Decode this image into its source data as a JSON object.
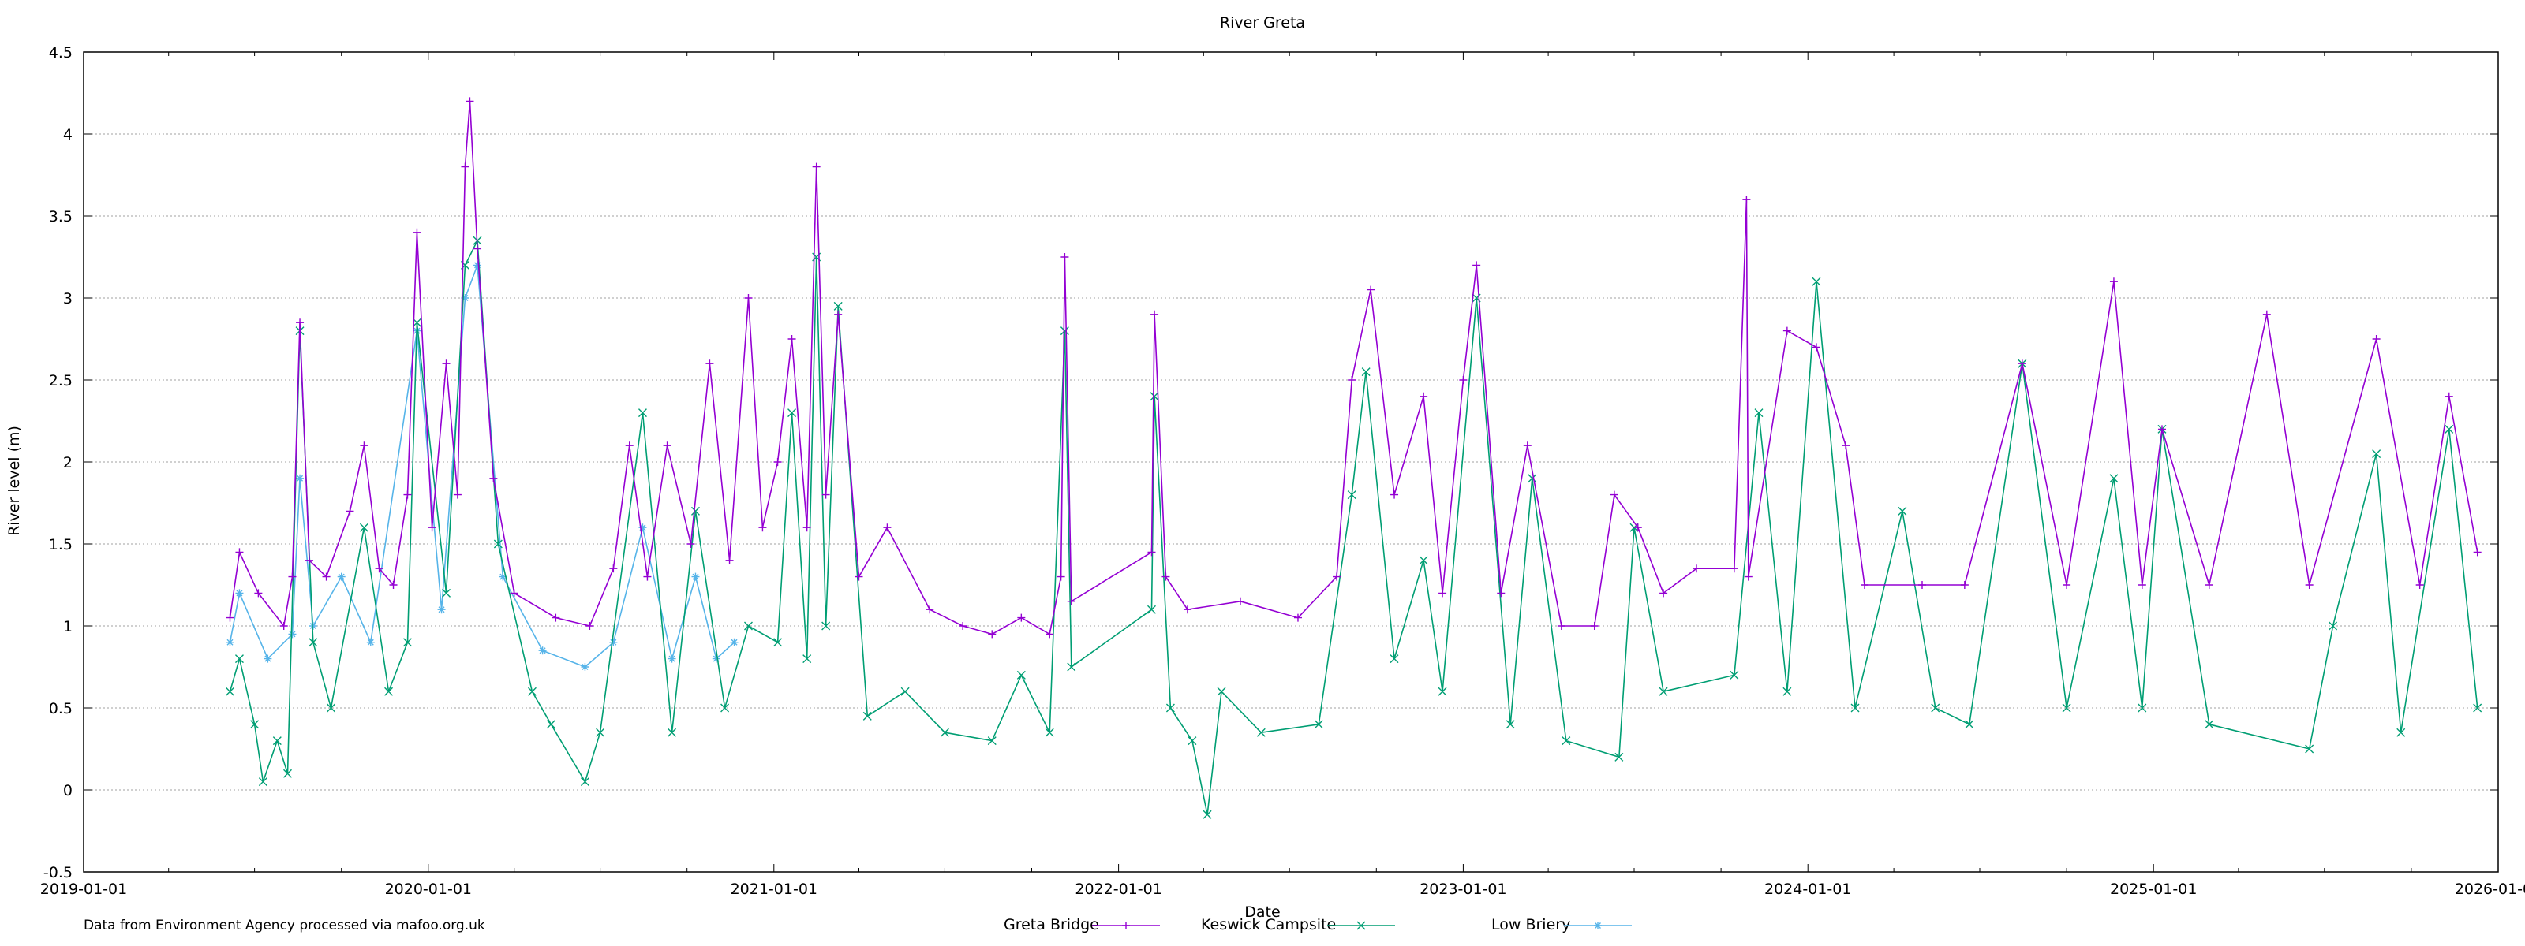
{
  "chart_data": {
    "type": "line",
    "title": "River Greta",
    "xlabel": "Date",
    "ylabel": "River level (m)",
    "footnote": "Data from Environment Agency processed via mafoo.org.uk",
    "x_axis": {
      "type": "date",
      "min": "2019-01-01",
      "max": "2026-01-01",
      "ticks": [
        "2019-01-01",
        "2020-01-01",
        "2021-01-01",
        "2022-01-01",
        "2023-01-01",
        "2024-01-01",
        "2025-01-01",
        "2026-01-01"
      ]
    },
    "y_axis": {
      "min": -0.5,
      "max": 4.5,
      "ticks": [
        -0.5,
        0,
        0.5,
        1,
        1.5,
        2,
        2.5,
        3,
        3.5,
        4,
        4.5
      ]
    },
    "grid": true,
    "legend_placement": "bottom-center",
    "series": [
      {
        "name": "Greta Bridge",
        "color": "#9400d3",
        "marker": "plus",
        "points": [
          [
            "2019-06-05",
            1.05
          ],
          [
            "2019-06-15",
            1.45
          ],
          [
            "2019-07-05",
            1.2
          ],
          [
            "2019-08-01",
            1.0
          ],
          [
            "2019-08-10",
            1.3
          ],
          [
            "2019-08-18",
            2.85
          ],
          [
            "2019-08-28",
            1.4
          ],
          [
            "2019-09-15",
            1.3
          ],
          [
            "2019-10-10",
            1.7
          ],
          [
            "2019-10-25",
            2.1
          ],
          [
            "2019-11-10",
            1.35
          ],
          [
            "2019-11-25",
            1.25
          ],
          [
            "2019-12-10",
            1.8
          ],
          [
            "2019-12-20",
            3.4
          ],
          [
            "2020-01-05",
            1.6
          ],
          [
            "2020-01-20",
            2.6
          ],
          [
            "2020-02-01",
            1.8
          ],
          [
            "2020-02-09",
            3.8
          ],
          [
            "2020-02-14",
            4.2
          ],
          [
            "2020-02-22",
            3.3
          ],
          [
            "2020-03-10",
            1.9
          ],
          [
            "2020-04-01",
            1.2
          ],
          [
            "2020-05-15",
            1.05
          ],
          [
            "2020-06-20",
            1.0
          ],
          [
            "2020-07-15",
            1.35
          ],
          [
            "2020-08-01",
            2.1
          ],
          [
            "2020-08-20",
            1.3
          ],
          [
            "2020-09-10",
            2.1
          ],
          [
            "2020-10-05",
            1.5
          ],
          [
            "2020-10-25",
            2.6
          ],
          [
            "2020-11-15",
            1.4
          ],
          [
            "2020-12-05",
            3.0
          ],
          [
            "2020-12-20",
            1.6
          ],
          [
            "2021-01-05",
            2.0
          ],
          [
            "2021-01-20",
            2.75
          ],
          [
            "2021-02-05",
            1.6
          ],
          [
            "2021-02-15",
            3.8
          ],
          [
            "2021-02-25",
            1.8
          ],
          [
            "2021-03-10",
            2.9
          ],
          [
            "2021-04-01",
            1.3
          ],
          [
            "2021-05-01",
            1.6
          ],
          [
            "2021-06-15",
            1.1
          ],
          [
            "2021-07-20",
            1.0
          ],
          [
            "2021-08-20",
            0.95
          ],
          [
            "2021-09-20",
            1.05
          ],
          [
            "2021-10-20",
            0.95
          ],
          [
            "2021-11-01",
            1.3
          ],
          [
            "2021-11-05",
            3.25
          ],
          [
            "2021-11-12",
            1.15
          ],
          [
            "2022-02-05",
            1.45
          ],
          [
            "2022-02-08",
            2.9
          ],
          [
            "2022-02-20",
            1.3
          ],
          [
            "2022-03-15",
            1.1
          ],
          [
            "2022-05-10",
            1.15
          ],
          [
            "2022-07-10",
            1.05
          ],
          [
            "2022-08-20",
            1.3
          ],
          [
            "2022-09-05",
            2.5
          ],
          [
            "2022-09-25",
            3.05
          ],
          [
            "2022-10-20",
            1.8
          ],
          [
            "2022-11-20",
            2.4
          ],
          [
            "2022-12-10",
            1.2
          ],
          [
            "2023-01-01",
            2.5
          ],
          [
            "2023-01-15",
            3.2
          ],
          [
            "2023-02-10",
            1.2
          ],
          [
            "2023-03-10",
            2.1
          ],
          [
            "2023-04-15",
            1.0
          ],
          [
            "2023-05-20",
            1.0
          ],
          [
            "2023-06-10",
            1.8
          ],
          [
            "2023-07-05",
            1.6
          ],
          [
            "2023-08-01",
            1.2
          ],
          [
            "2023-09-05",
            1.35
          ],
          [
            "2023-10-15",
            1.35
          ],
          [
            "2023-10-28",
            3.6
          ],
          [
            "2023-10-30",
            1.3
          ],
          [
            "2023-12-10",
            2.8
          ],
          [
            "2024-01-10",
            2.7
          ],
          [
            "2024-02-10",
            2.1
          ],
          [
            "2024-03-01",
            1.25
          ],
          [
            "2024-05-01",
            1.25
          ],
          [
            "2024-06-15",
            1.25
          ],
          [
            "2024-08-15",
            2.6
          ],
          [
            "2024-10-01",
            1.25
          ],
          [
            "2024-11-20",
            3.1
          ],
          [
            "2024-12-20",
            1.25
          ],
          [
            "2025-01-10",
            2.2
          ],
          [
            "2025-03-01",
            1.25
          ],
          [
            "2025-05-01",
            2.9
          ],
          [
            "2025-06-15",
            1.25
          ],
          [
            "2025-08-25",
            2.75
          ],
          [
            "2025-10-10",
            1.25
          ],
          [
            "2025-11-10",
            2.4
          ],
          [
            "2025-12-10",
            1.45
          ]
        ]
      },
      {
        "name": "Keswick Campsite",
        "color": "#009e73",
        "marker": "cross",
        "points": [
          [
            "2019-06-05",
            0.6
          ],
          [
            "2019-06-15",
            0.8
          ],
          [
            "2019-07-01",
            0.4
          ],
          [
            "2019-07-10",
            0.05
          ],
          [
            "2019-07-25",
            0.3
          ],
          [
            "2019-08-05",
            0.1
          ],
          [
            "2019-08-18",
            2.8
          ],
          [
            "2019-09-01",
            0.9
          ],
          [
            "2019-09-20",
            0.5
          ],
          [
            "2019-10-25",
            1.6
          ],
          [
            "2019-11-20",
            0.6
          ],
          [
            "2019-12-10",
            0.9
          ],
          [
            "2019-12-20",
            2.85
          ],
          [
            "2020-01-20",
            1.2
          ],
          [
            "2020-02-09",
            3.2
          ],
          [
            "2020-02-22",
            3.35
          ],
          [
            "2020-03-15",
            1.5
          ],
          [
            "2020-04-20",
            0.6
          ],
          [
            "2020-05-10",
            0.4
          ],
          [
            "2020-06-15",
            0.05
          ],
          [
            "2020-07-01",
            0.35
          ],
          [
            "2020-08-15",
            2.3
          ],
          [
            "2020-09-15",
            0.35
          ],
          [
            "2020-10-10",
            1.7
          ],
          [
            "2020-11-10",
            0.5
          ],
          [
            "2020-12-05",
            1.0
          ],
          [
            "2021-01-05",
            0.9
          ],
          [
            "2021-01-20",
            2.3
          ],
          [
            "2021-02-05",
            0.8
          ],
          [
            "2021-02-15",
            3.25
          ],
          [
            "2021-02-25",
            1.0
          ],
          [
            "2021-03-10",
            2.95
          ],
          [
            "2021-04-10",
            0.45
          ],
          [
            "2021-05-20",
            0.6
          ],
          [
            "2021-07-01",
            0.35
          ],
          [
            "2021-08-20",
            0.3
          ],
          [
            "2021-09-20",
            0.7
          ],
          [
            "2021-10-20",
            0.35
          ],
          [
            "2021-11-05",
            2.8
          ],
          [
            "2021-11-12",
            0.75
          ],
          [
            "2022-02-05",
            1.1
          ],
          [
            "2022-02-08",
            2.4
          ],
          [
            "2022-02-25",
            0.5
          ],
          [
            "2022-03-20",
            0.3
          ],
          [
            "2022-04-05",
            -0.15
          ],
          [
            "2022-04-20",
            0.6
          ],
          [
            "2022-06-01",
            0.35
          ],
          [
            "2022-08-01",
            0.4
          ],
          [
            "2022-09-05",
            1.8
          ],
          [
            "2022-09-20",
            2.55
          ],
          [
            "2022-10-20",
            0.8
          ],
          [
            "2022-11-20",
            1.4
          ],
          [
            "2022-12-10",
            0.6
          ],
          [
            "2023-01-15",
            3.0
          ],
          [
            "2023-02-20",
            0.4
          ],
          [
            "2023-03-15",
            1.9
          ],
          [
            "2023-04-20",
            0.3
          ],
          [
            "2023-06-15",
            0.2
          ],
          [
            "2023-07-01",
            1.6
          ],
          [
            "2023-08-01",
            0.6
          ],
          [
            "2023-10-15",
            0.7
          ],
          [
            "2023-11-10",
            2.3
          ],
          [
            "2023-12-10",
            0.6
          ],
          [
            "2024-01-10",
            3.1
          ],
          [
            "2024-02-20",
            0.5
          ],
          [
            "2024-04-10",
            1.7
          ],
          [
            "2024-05-15",
            0.5
          ],
          [
            "2024-06-20",
            0.4
          ],
          [
            "2024-08-15",
            2.6
          ],
          [
            "2024-10-01",
            0.5
          ],
          [
            "2024-11-20",
            1.9
          ],
          [
            "2024-12-20",
            0.5
          ],
          [
            "2025-01-10",
            2.2
          ],
          [
            "2025-03-01",
            0.4
          ],
          [
            "2025-06-15",
            0.25
          ],
          [
            "2025-07-10",
            1.0
          ],
          [
            "2025-08-25",
            2.05
          ],
          [
            "2025-09-20",
            0.35
          ],
          [
            "2025-11-10",
            2.2
          ],
          [
            "2025-12-10",
            0.5
          ]
        ]
      },
      {
        "name": "Low Briery",
        "color": "#56b4e9",
        "marker": "star",
        "points": [
          [
            "2019-06-05",
            0.9
          ],
          [
            "2019-06-15",
            1.2
          ],
          [
            "2019-07-15",
            0.8
          ],
          [
            "2019-08-10",
            0.95
          ],
          [
            "2019-08-18",
            1.9
          ],
          [
            "2019-09-01",
            1.0
          ],
          [
            "2019-10-01",
            1.3
          ],
          [
            "2019-11-01",
            0.9
          ],
          [
            "2019-12-20",
            2.8
          ],
          [
            "2020-01-15",
            1.1
          ],
          [
            "2020-02-09",
            3.0
          ],
          [
            "2020-02-22",
            3.2
          ],
          [
            "2020-03-20",
            1.3
          ],
          [
            "2020-05-01",
            0.85
          ],
          [
            "2020-06-15",
            0.75
          ],
          [
            "2020-07-15",
            0.9
          ],
          [
            "2020-08-15",
            1.6
          ],
          [
            "2020-09-15",
            0.8
          ],
          [
            "2020-10-10",
            1.3
          ],
          [
            "2020-11-01",
            0.8
          ],
          [
            "2020-11-20",
            0.9
          ]
        ]
      }
    ]
  }
}
